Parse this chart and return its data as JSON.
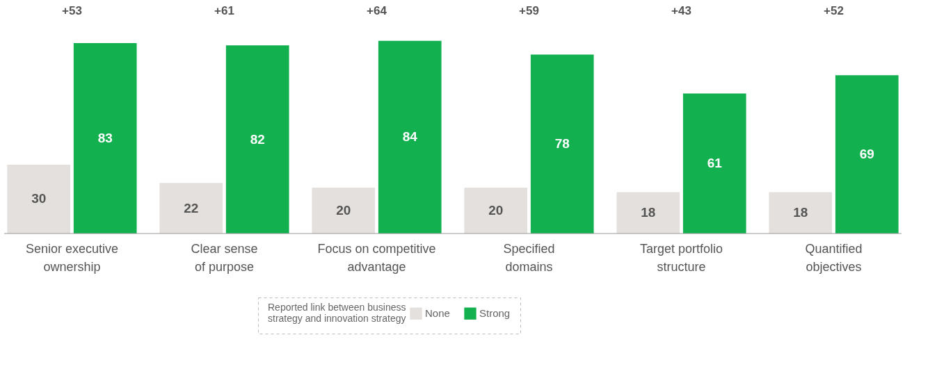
{
  "chart_data": {
    "type": "bar",
    "categories": [
      "Senior executive ownership",
      "Clear sense of purpose",
      "Focus on competitive advantage",
      "Specified domains",
      "Target portfolio structure",
      "Quantified objectives"
    ],
    "series": [
      {
        "name": "None",
        "color": "#e4e0dd",
        "values": [
          30,
          22,
          20,
          20,
          18,
          18
        ]
      },
      {
        "name": "Strong",
        "color": "#13b04f",
        "values": [
          83,
          82,
          84,
          78,
          61,
          69
        ]
      }
    ],
    "legend_title": "Reported link between business strategy and innovation strategy",
    "legend": "bottom",
    "data_labels": true,
    "annotations": [
      "+53",
      "+61",
      "+64",
      "+59",
      "+43",
      "+52"
    ]
  }
}
